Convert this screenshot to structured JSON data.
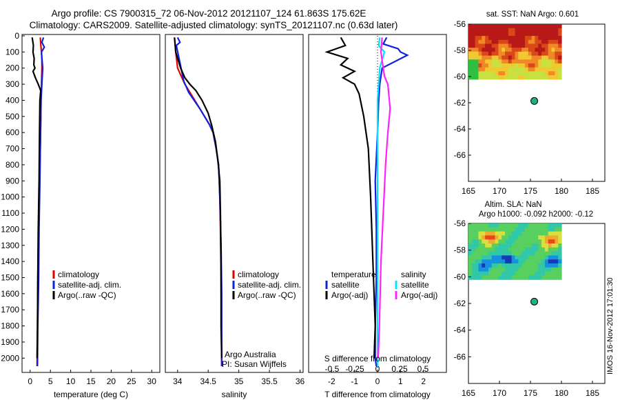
{
  "title_line1": "Argo profile: CS 7900315_72 06-Nov-2012 20121107_124 61.863S 175.62E",
  "title_line2": "Climatology: CARS2009. Satellite-adjusted climatology: synTS_20121107.nc (0.63d later)",
  "side_stamp": "IMOS 16-Nov-2012 17:01:30",
  "colors": {
    "climatology": "#e00000",
    "satellite": "#1020e0",
    "argo": "#000000",
    "satellite_s": "#00e0ff",
    "argo_s": "#ff20ff",
    "marker": "#20b080"
  },
  "chart_data": [
    {
      "type": "line",
      "name": "temperature-profile",
      "xlabel": "temperature (deg C)",
      "ylabel": "",
      "xlim": [
        -2,
        32
      ],
      "ylim": [
        2080,
        0
      ],
      "y_reversed": true,
      "xticks": [
        0,
        5,
        10,
        15,
        20,
        25,
        30
      ],
      "yticks": [
        0,
        100,
        200,
        300,
        400,
        500,
        600,
        700,
        800,
        900,
        1000,
        1100,
        1200,
        1300,
        1400,
        1500,
        1600,
        1700,
        1800,
        1900,
        2000
      ],
      "legend": [
        "climatology",
        "satellite-adj. clim.",
        "Argo(..raw -QC)"
      ],
      "series": [
        {
          "name": "climatology",
          "color": "climatology",
          "x": [
            2.5,
            2.6,
            2.8,
            2.9,
            2.9,
            2.8,
            2.7,
            2.6,
            2.5,
            2.3,
            2.1,
            1.9,
            1.8,
            1.7
          ],
          "y": [
            10,
            50,
            100,
            150,
            200,
            300,
            400,
            550,
            700,
            900,
            1200,
            1500,
            1800,
            2050
          ]
        },
        {
          "name": "satellite-adj. clim.",
          "color": "satellite",
          "x": [
            3.3,
            2.9,
            3.5,
            2.8,
            3.1,
            2.9,
            2.7,
            2.6,
            2.5,
            2.4,
            2.2,
            2.1,
            1.9,
            1.8
          ],
          "y": [
            10,
            40,
            70,
            100,
            200,
            300,
            400,
            550,
            700,
            900,
            1200,
            1500,
            1800,
            2050
          ]
        },
        {
          "name": "Argo(..raw -QC)",
          "color": "argo",
          "x": [
            0.5,
            0.8,
            0.7,
            1.0,
            0.9,
            1.2,
            0.7,
            1.3,
            2.0,
            2.6,
            2.4,
            2.3,
            2.2,
            2.0,
            1.9,
            1.8,
            1.7
          ],
          "y": [
            10,
            60,
            100,
            140,
            180,
            200,
            220,
            260,
            300,
            340,
            400,
            600,
            900,
            1200,
            1500,
            1800,
            2000
          ]
        }
      ]
    },
    {
      "type": "line",
      "name": "salinity-profile",
      "xlabel": "salinity",
      "ylabel": "",
      "xlim": [
        33.8,
        36.05
      ],
      "ylim": [
        2080,
        0
      ],
      "y_reversed": true,
      "xticks": [
        34,
        34.5,
        35,
        35.5,
        36
      ],
      "legend": [
        "climatology",
        "satellite-adj. clim.",
        "Argo(..raw -QC)"
      ],
      "annotation": [
        "Argo Australia",
        "PI: Susan Wijffels"
      ],
      "series": [
        {
          "name": "climatology",
          "color": "climatology",
          "x": [
            33.95,
            33.97,
            34.0,
            34.06,
            34.12,
            34.2,
            34.28,
            34.36,
            34.44,
            34.52,
            34.58,
            34.63,
            34.67,
            34.69,
            34.7,
            34.71,
            34.72
          ],
          "y": [
            10,
            100,
            200,
            250,
            300,
            350,
            400,
            450,
            500,
            550,
            600,
            700,
            800,
            1000,
            1200,
            1500,
            2050
          ]
        },
        {
          "name": "satellite-adj. clim.",
          "color": "satellite",
          "x": [
            34.0,
            34.04,
            33.98,
            34.03,
            34.1,
            34.18,
            34.27,
            34.36,
            34.44,
            34.52,
            34.58,
            34.63,
            34.67,
            34.69,
            34.71,
            34.72,
            34.72
          ],
          "y": [
            10,
            40,
            60,
            150,
            280,
            350,
            400,
            450,
            500,
            550,
            600,
            700,
            800,
            1000,
            1300,
            1600,
            2050
          ]
        },
        {
          "name": "Argo(..raw -QC)",
          "color": "argo",
          "x": [
            33.95,
            33.97,
            34.05,
            34.12,
            34.2,
            34.3,
            34.4,
            34.5,
            34.56,
            34.62,
            34.66,
            34.69,
            34.7,
            34.71,
            34.71,
            34.72
          ],
          "y": [
            10,
            100,
            200,
            260,
            300,
            340,
            400,
            480,
            560,
            660,
            780,
            900,
            1100,
            1400,
            1800,
            2000
          ]
        }
      ]
    },
    {
      "type": "line",
      "name": "difference-profile",
      "xlabel": "T difference from climatology",
      "xlabel_top": "S difference from climatology",
      "xlim": [
        -3,
        3
      ],
      "ylim": [
        2080,
        0
      ],
      "y_reversed": true,
      "xticks": [
        -2,
        -1,
        0,
        1,
        2
      ],
      "xticks_s": [
        "-0.5",
        "-0.25",
        "0",
        "0.25",
        "0.5"
      ],
      "legend_left_title": "temperature",
      "legend_right_title": "salinity",
      "legend": [
        "satellite",
        "Argo(-adj)",
        "satellite",
        "Argo(-adj)"
      ],
      "series": [
        {
          "name": "satellite",
          "group": "temperature",
          "color": "satellite",
          "x": [
            0.4,
            0.25,
            0.9,
            1.0,
            1.3,
            0.2,
            0.1,
            0.05,
            0,
            -0.1,
            -0.05,
            -0.05,
            -0.1,
            -0.1,
            -0.05
          ],
          "y": [
            10,
            50,
            80,
            100,
            120,
            200,
            300,
            400,
            600,
            900,
            1200,
            1500,
            1800,
            2000,
            2050
          ]
        },
        {
          "name": "Argo(-adj)",
          "group": "temperature",
          "color": "argo",
          "x": [
            -1.6,
            -1.4,
            -2.2,
            -1.3,
            -1.6,
            -1.0,
            -1.5,
            -1.0,
            -0.8,
            -0.6,
            -0.4,
            -0.3,
            -0.2,
            -0.1,
            -0.15
          ],
          "y": [
            10,
            60,
            100,
            140,
            180,
            220,
            260,
            300,
            360,
            500,
            700,
            1000,
            1400,
            1800,
            2000
          ]
        },
        {
          "name": "satellite",
          "group": "salinity",
          "color": "satellite_s",
          "x": [
            0.1,
            0.05,
            0.3,
            0.1,
            0.05,
            0,
            0,
            0,
            0,
            0
          ],
          "y": [
            10,
            60,
            100,
            200,
            300,
            400,
            700,
            1200,
            1700,
            2050
          ]
        },
        {
          "name": "Argo(-adj)",
          "group": "salinity",
          "color": "argo_s",
          "x": [
            0.2,
            0.15,
            0.3,
            0.45,
            0.55,
            0.45,
            0.35,
            0.25,
            0.15,
            0.08,
            0.03
          ],
          "y": [
            10,
            100,
            250,
            300,
            450,
            600,
            800,
            1100,
            1400,
            1800,
            2000
          ]
        }
      ]
    },
    {
      "type": "heatmap",
      "name": "sst-map",
      "title": "sat. SST: NaN Argo: 0.601",
      "xlim": [
        165,
        187
      ],
      "ylim": [
        -68,
        -56
      ],
      "xticks": [
        165,
        170,
        175,
        180,
        185
      ],
      "yticks": [
        -56,
        -58,
        -60,
        -62,
        -64,
        -66
      ],
      "field_extent": {
        "lon": [
          165,
          180
        ],
        "lat": [
          -60.2,
          -56
        ]
      },
      "argo_position": {
        "lon": 175.62,
        "lat": -61.863
      }
    },
    {
      "type": "heatmap",
      "name": "sla-map",
      "title": "Altim. SLA: NaN",
      "subtitle": "Argo h1000: -0.092 h2000: -0.12",
      "xlim": [
        165,
        187
      ],
      "ylim": [
        -68,
        -56
      ],
      "xticks": [
        165,
        170,
        175,
        180,
        185
      ],
      "yticks": [
        -56,
        -58,
        -60,
        -62,
        -64,
        -66
      ],
      "field_extent": {
        "lon": [
          165,
          180
        ],
        "lat": [
          -60.2,
          -56
        ]
      },
      "argo_position": {
        "lon": 175.62,
        "lat": -61.863
      }
    }
  ]
}
